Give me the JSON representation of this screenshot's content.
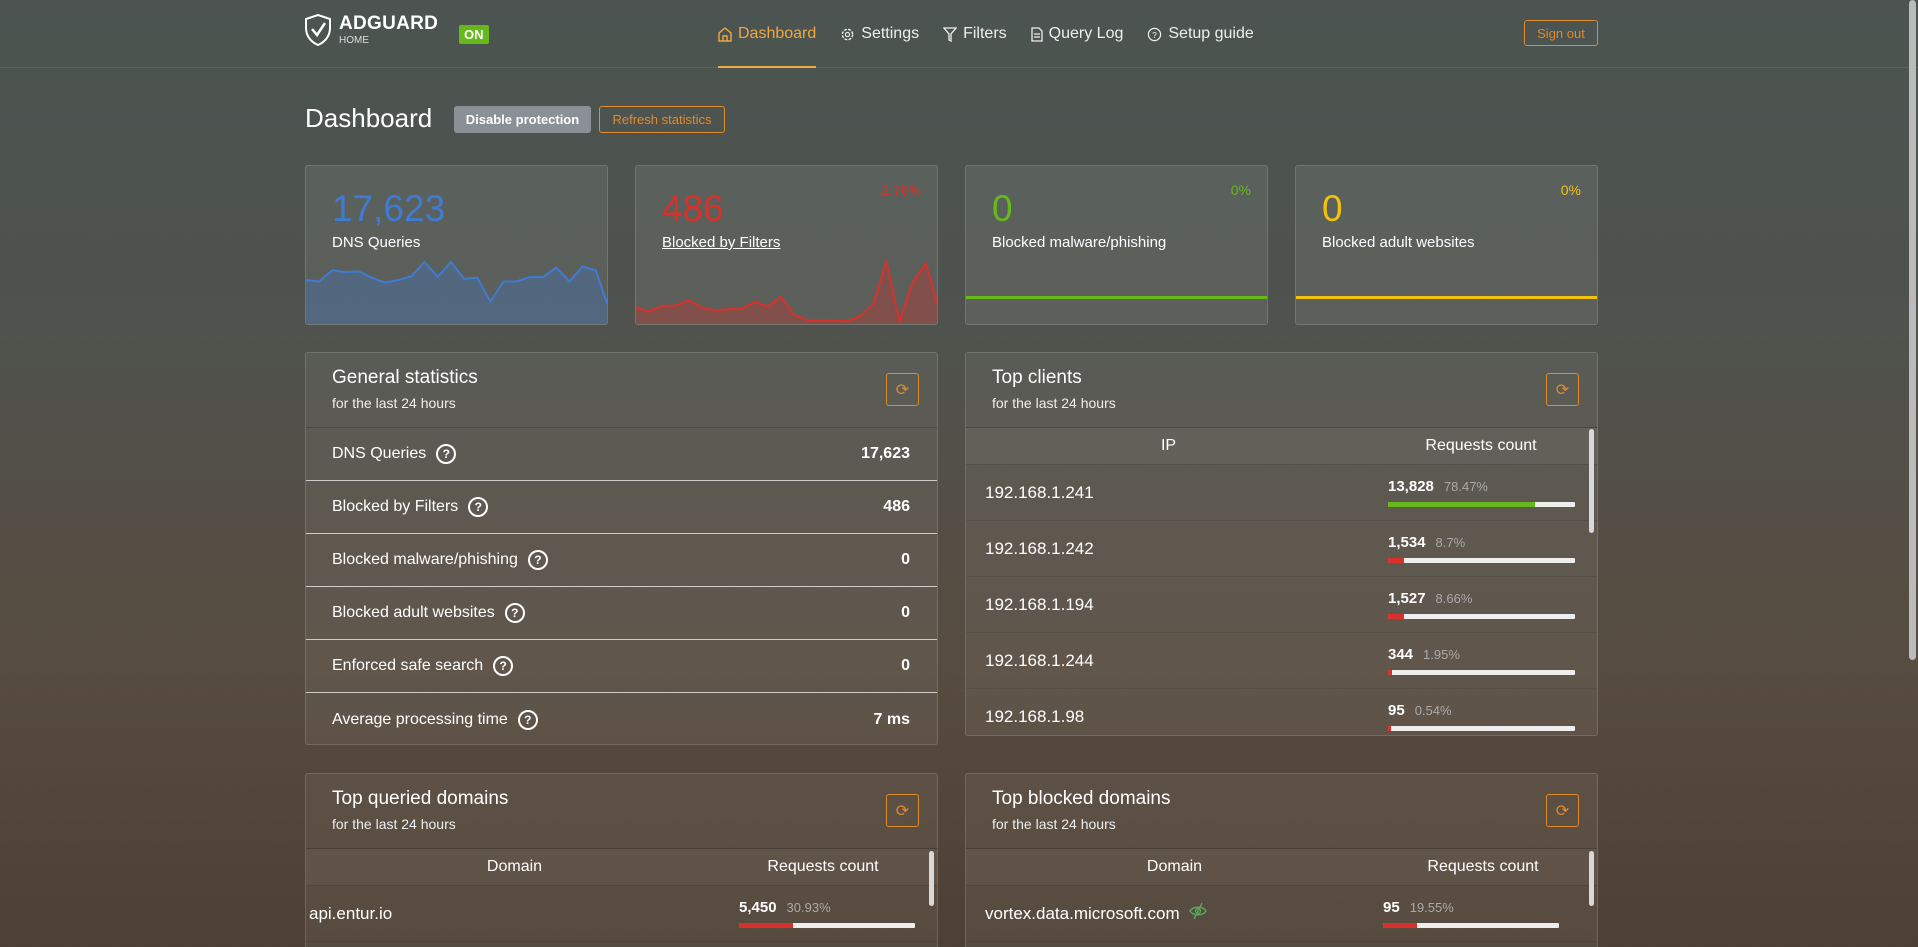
{
  "brand": {
    "name": "ADGUARD",
    "sub": "HOME",
    "status": "ON"
  },
  "nav": {
    "items": [
      {
        "label": "Dashboard",
        "icon": "home-icon",
        "active": true
      },
      {
        "label": "Settings",
        "icon": "gear-icon"
      },
      {
        "label": "Filters",
        "icon": "filter-icon"
      },
      {
        "label": "Query Log",
        "icon": "document-icon"
      },
      {
        "label": "Setup guide",
        "icon": "help-circle-icon"
      }
    ],
    "sign_out": "Sign out"
  },
  "page": {
    "title": "Dashboard",
    "disable_protection": "Disable protection",
    "refresh_statistics": "Refresh statistics"
  },
  "colors": {
    "accent": "#e08a2a",
    "blue": "#3f7bd3",
    "red": "#d8302a",
    "green": "#67b91b",
    "yellow": "#f4c20d"
  },
  "cards": [
    {
      "value": "17,623",
      "label": "DNS Queries",
      "percent": "",
      "color": "#3f7bd3"
    },
    {
      "value": "486",
      "label": "Blocked by Filters",
      "percent": "2.76%",
      "color": "#d8302a"
    },
    {
      "value": "0",
      "label": "Blocked malware/phishing",
      "percent": "0%",
      "color": "#67b91b"
    },
    {
      "value": "0",
      "label": "Blocked adult websites",
      "percent": "0%",
      "color": "#f4c20d"
    }
  ],
  "chart_data": [
    {
      "type": "area",
      "series": [
        {
          "values": [
            672,
            648,
            828,
            798,
            810,
            708,
            630,
            672,
            732,
            960,
            720,
            960,
            690,
            708,
            330,
            648,
            648,
            720,
            720,
            870,
            648,
            888,
            828,
            210
          ]
        }
      ]
    },
    {
      "type": "area",
      "series": [
        {
          "values": [
            18,
            13,
            20,
            20,
            27,
            18,
            14,
            16,
            16,
            25,
            19,
            31,
            9,
            2,
            2,
            2,
            1,
            7,
            22,
            74,
            1,
            49,
            72,
            16
          ]
        }
      ]
    }
  ],
  "general": {
    "title": "General statistics",
    "subtitle": "for the last 24 hours",
    "rows": [
      {
        "label": "DNS Queries",
        "value": "17,623"
      },
      {
        "label": "Blocked by Filters",
        "value": "486"
      },
      {
        "label": "Blocked malware/phishing",
        "value": "0"
      },
      {
        "label": "Blocked adult websites",
        "value": "0"
      },
      {
        "label": "Enforced safe search",
        "value": "0"
      },
      {
        "label": "Average processing time",
        "value": "7 ms"
      }
    ]
  },
  "clients": {
    "title": "Top clients",
    "subtitle": "for the last 24 hours",
    "col_ip": "IP",
    "col_count": "Requests count",
    "rows": [
      {
        "ip": "192.168.1.241",
        "count": "13,828",
        "percent": "78.47%",
        "fill": 78.47,
        "color": "#67b91b"
      },
      {
        "ip": "192.168.1.242",
        "count": "1,534",
        "percent": "8.7%",
        "fill": 8.7,
        "color": "#d8302a"
      },
      {
        "ip": "192.168.1.194",
        "count": "1,527",
        "percent": "8.66%",
        "fill": 8.66,
        "color": "#d8302a"
      },
      {
        "ip": "192.168.1.244",
        "count": "344",
        "percent": "1.95%",
        "fill": 1.95,
        "color": "#d8302a"
      },
      {
        "ip": "192.168.1.98",
        "count": "95",
        "percent": "0.54%",
        "fill": 0.54,
        "color": "#d8302a"
      }
    ]
  },
  "queried": {
    "title": "Top queried domains",
    "subtitle": "for the last 24 hours",
    "col_domain": "Domain",
    "col_count": "Requests count",
    "rows": [
      {
        "domain": "api.entur.io",
        "count": "5,450",
        "percent": "30.93%",
        "fill": 30.93
      }
    ]
  },
  "blocked": {
    "title": "Top blocked domains",
    "subtitle": "for the last 24 hours",
    "col_domain": "Domain",
    "col_count": "Requests count",
    "rows": [
      {
        "domain": "vortex.data.microsoft.com",
        "count": "95",
        "percent": "19.55%",
        "fill": 19.55
      }
    ]
  }
}
